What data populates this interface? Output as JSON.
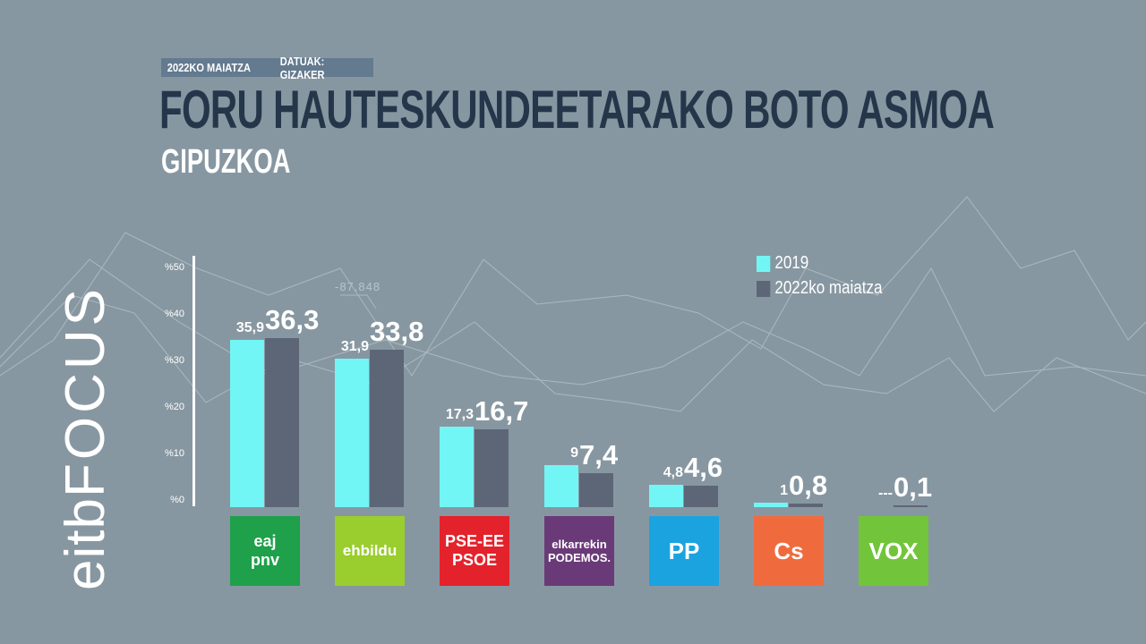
{
  "header": {
    "date": "2022KO MAIATZA",
    "source": "DATUAK: GIZAKER",
    "title": "FORU HAUTESKUNDEETARAKO BOTO ASMOA",
    "subtitle": "GIPUZKOA"
  },
  "logo": {
    "text1": "eitb",
    "text2": "FOCUS"
  },
  "decoration_text": "-87.848",
  "colors": {
    "background": "#8797a1",
    "series_2019": "#72f5f5",
    "series_2022": "#5d6677",
    "title": "#25364a"
  },
  "chart_data": {
    "type": "bar",
    "categories": [
      "EAJ-PNV",
      "EH Bildu",
      "PSE-EE PSOE",
      "Elkarrekin Podemos",
      "PP",
      "Cs",
      "Vox"
    ],
    "series": [
      {
        "name": "2019",
        "values": [
          35.9,
          31.9,
          17.3,
          9,
          4.8,
          1,
          null
        ],
        "labels": [
          "35,9",
          "31,9",
          "17,3",
          "9",
          "4,8",
          "1",
          "---"
        ]
      },
      {
        "name": "2022ko maiatza",
        "values": [
          36.3,
          33.8,
          16.7,
          7.4,
          4.6,
          0.8,
          0.1
        ],
        "labels": [
          "36,3",
          "33,8",
          "16,7",
          "7,4",
          "4,6",
          "0,8",
          "0,1"
        ]
      }
    ],
    "yticks": [
      "%0",
      "%10",
      "%20",
      "%30",
      "%40",
      "%50"
    ],
    "ylim": [
      0,
      50
    ],
    "legend": "top-right",
    "party_logos": [
      {
        "lines": [
          "eaj",
          "pnv"
        ],
        "color": "#1fa04a"
      },
      {
        "lines": [
          "ehbildu"
        ],
        "color": "#9acd2e"
      },
      {
        "lines": [
          "PSE-EE",
          "PSOE"
        ],
        "color": "#e3222b"
      },
      {
        "lines": [
          "elkarrekin",
          "PODEMOS."
        ],
        "color": "#6a3a78"
      },
      {
        "lines": [
          "PP"
        ],
        "color": "#1ba3e0"
      },
      {
        "lines": [
          "Cs"
        ],
        "color": "#ef6b3e"
      },
      {
        "lines": [
          "VOX"
        ],
        "color": "#72c53b"
      }
    ]
  }
}
